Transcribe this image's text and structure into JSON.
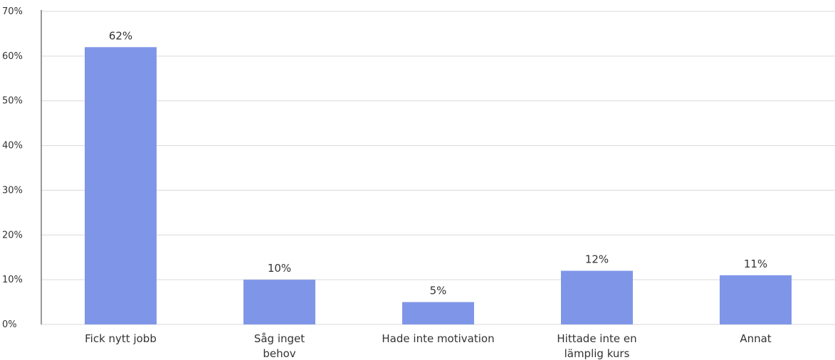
{
  "chart_data": {
    "type": "bar",
    "categories": [
      [
        "Fick nytt jobb"
      ],
      [
        "Såg inget",
        "behov"
      ],
      [
        "Hade inte motivation"
      ],
      [
        "Hittade inte en",
        "lämplig kurs"
      ],
      [
        "Annat"
      ]
    ],
    "values": [
      62,
      10,
      5,
      12,
      11
    ],
    "value_labels": [
      "62%",
      "10%",
      "5%",
      "12%",
      "11%"
    ],
    "y_ticks": [
      0,
      10,
      20,
      30,
      40,
      50,
      60,
      70
    ],
    "y_tick_labels": [
      "0%",
      "10%",
      "20%",
      "30%",
      "40%",
      "50%",
      "60%",
      "70%"
    ],
    "ylim": [
      0,
      70
    ],
    "grid": true,
    "legend": "none",
    "bar_color": "#7f96e8"
  }
}
